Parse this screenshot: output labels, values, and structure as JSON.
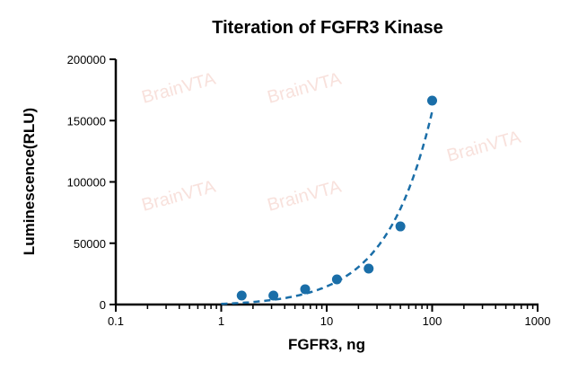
{
  "watermark": "BrainVTA",
  "chart_data": {
    "type": "scatter",
    "title": "Titeration of FGFR3 Kinase",
    "xlabel": "FGFR3, ng",
    "ylabel": "Luminescence(RLU)",
    "x_scale": "log",
    "xlim": [
      0.1,
      1000
    ],
    "ylim": [
      0,
      200000
    ],
    "x_ticks": [
      "0.1",
      "1",
      "10",
      "100",
      "1000"
    ],
    "y_ticks": [
      "0",
      "50000",
      "100000",
      "150000",
      "200000"
    ],
    "x": [
      1.5625,
      3.125,
      6.25,
      12.5,
      25,
      50,
      100
    ],
    "y": [
      7300,
      7300,
      12500,
      20500,
      29300,
      63700,
      166300
    ],
    "fit_line": "dashed",
    "grid": false,
    "color": "#1a6ea8"
  }
}
